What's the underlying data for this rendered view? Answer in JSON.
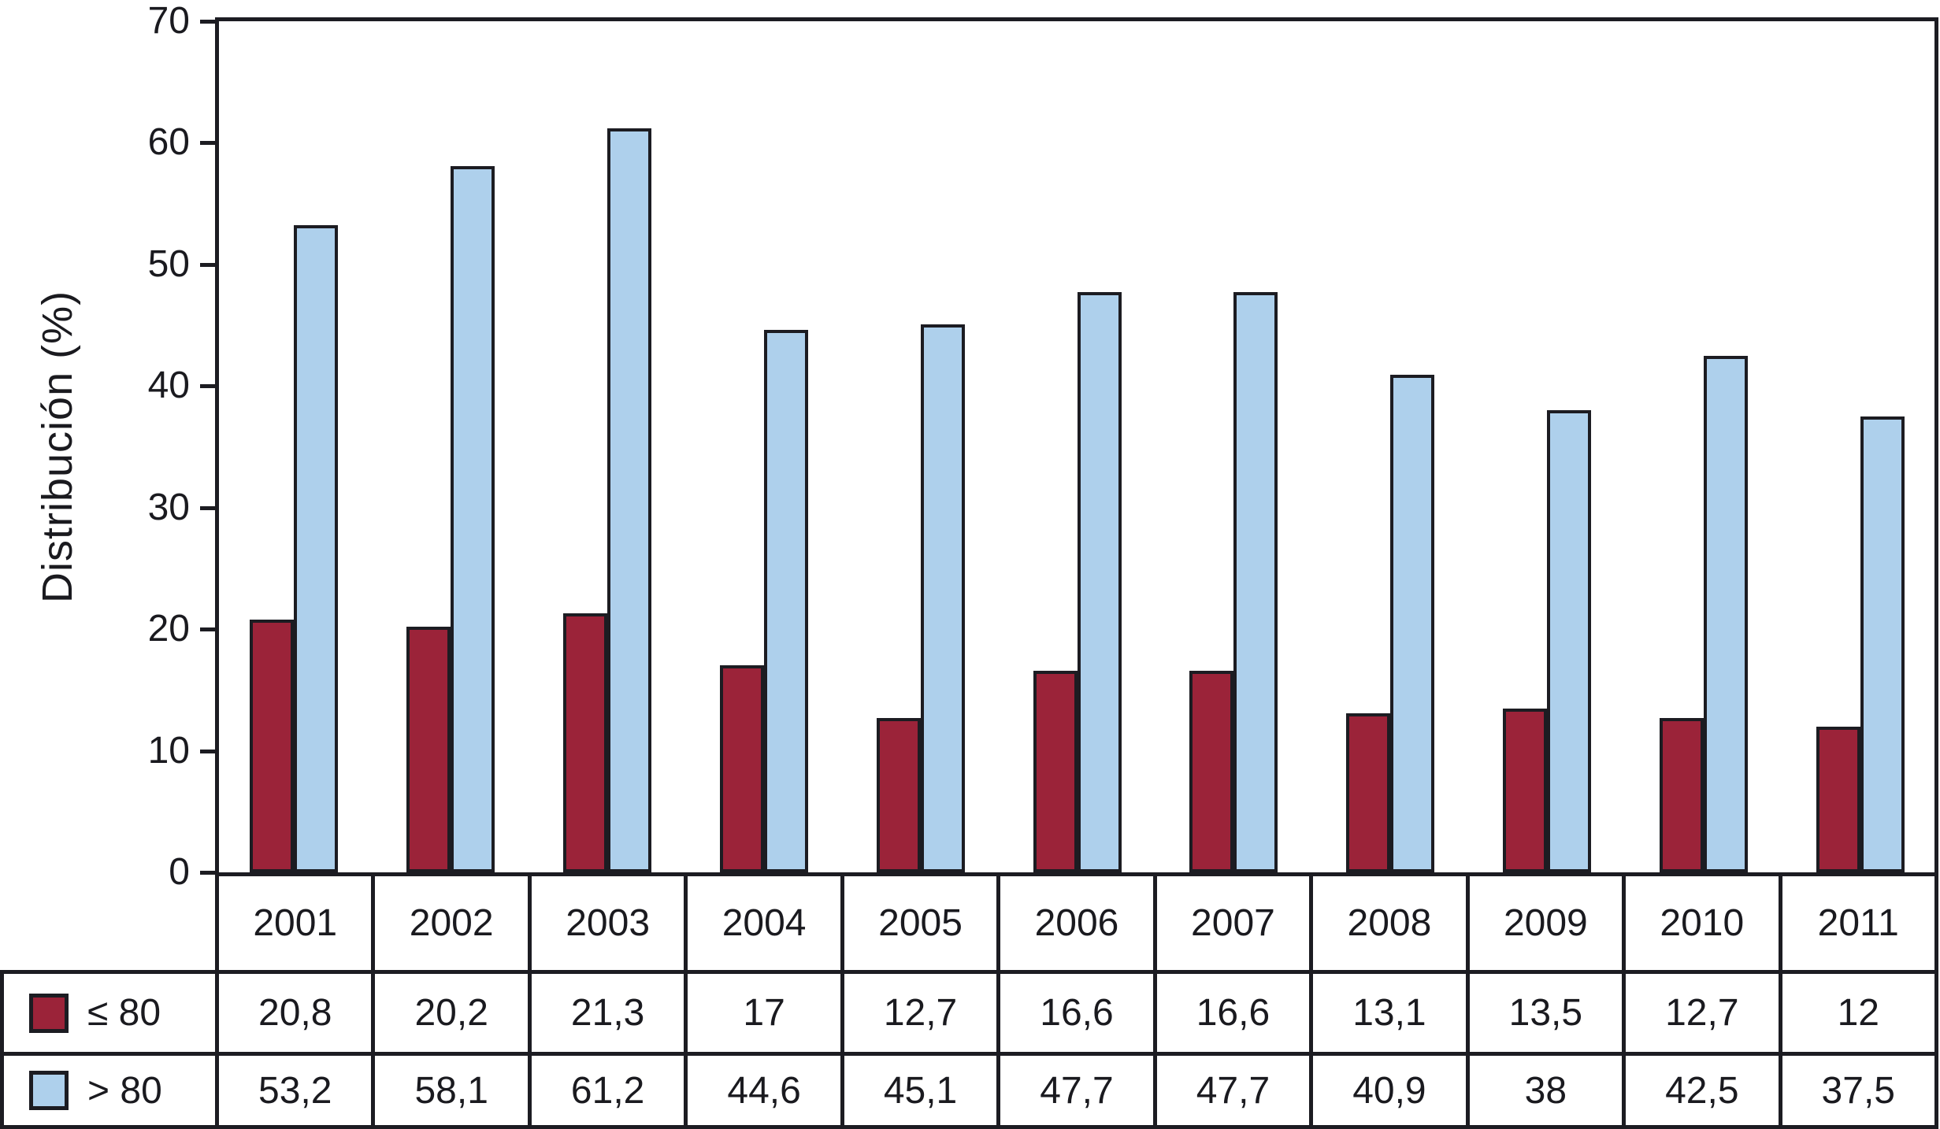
{
  "chart_data": {
    "type": "bar",
    "categories": [
      "2001",
      "2002",
      "2003",
      "2004",
      "2005",
      "2006",
      "2007",
      "2008",
      "2009",
      "2010",
      "2011"
    ],
    "series": [
      {
        "name": "≤ 80",
        "color": "#9b2339",
        "values": [
          20.8,
          20.2,
          21.3,
          17,
          12.7,
          16.6,
          16.6,
          13.1,
          13.5,
          12.7,
          12
        ]
      },
      {
        "name": "> 80",
        "color": "#aed0ec",
        "values": [
          53.2,
          58.1,
          61.2,
          44.6,
          45.1,
          47.7,
          47.7,
          40.9,
          38,
          42.5,
          37.5
        ]
      }
    ],
    "title": "",
    "xlabel": "",
    "ylabel": "Distribución (%)",
    "ylim": [
      0,
      70
    ],
    "y_ticks": [
      0,
      10,
      20,
      30,
      40,
      50,
      60,
      70
    ],
    "grid": false,
    "legend_position": "table-left",
    "bar_outline_color": "#1c1c22"
  },
  "table": {
    "row_labels": [
      "≤ 80",
      "> 80"
    ],
    "values_display": [
      [
        "20,8",
        "20,2",
        "21,3",
        "17",
        "12,7",
        "16,6",
        "16,6",
        "13,1",
        "13,5",
        "12,7",
        "12"
      ],
      [
        "53,2",
        "58,1",
        "61,2",
        "44,6",
        "45,1",
        "47,7",
        "47,7",
        "40,9",
        "38",
        "42,5",
        "37,5"
      ]
    ]
  },
  "colors": {
    "series_le80": "#9b2339",
    "series_gt80": "#aed0ec",
    "axis_and_border": "#1c1c22",
    "background": "#ffffff"
  }
}
